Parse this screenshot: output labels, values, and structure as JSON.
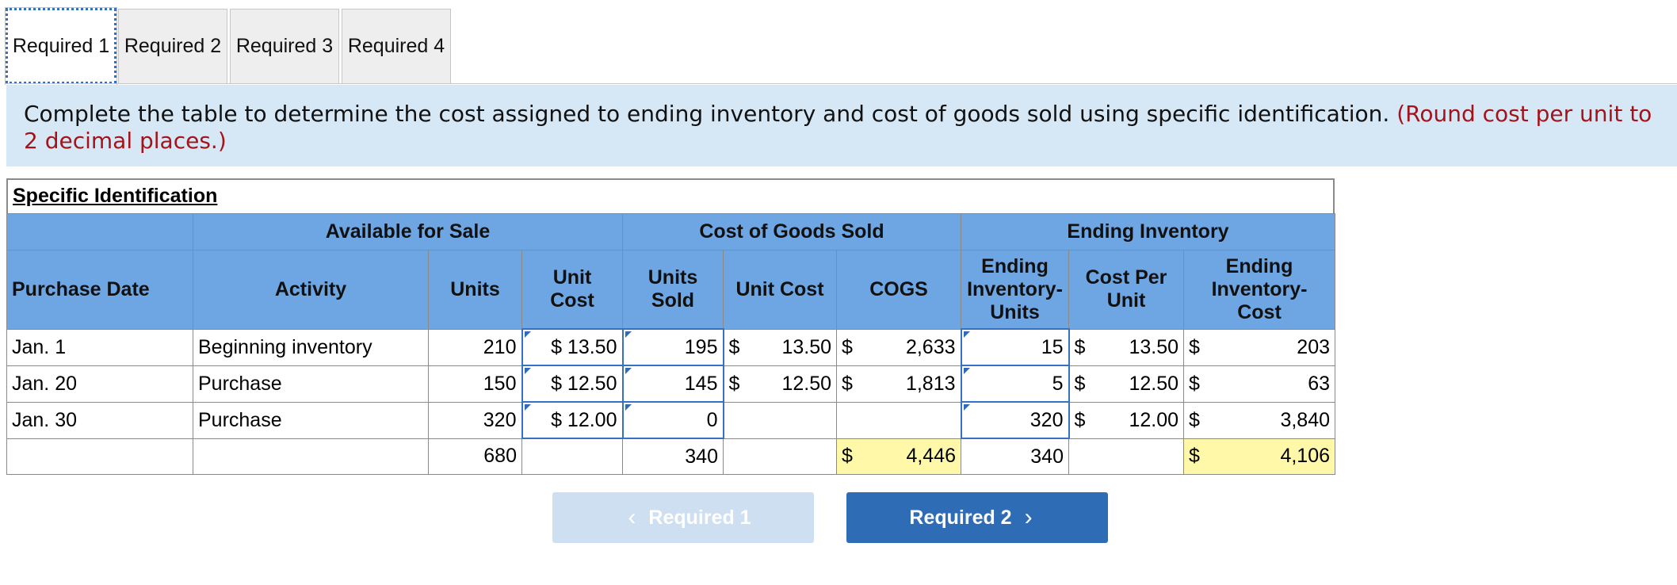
{
  "tabs": [
    {
      "label": "Required 1"
    },
    {
      "label": "Required 2"
    },
    {
      "label": "Required 3"
    },
    {
      "label": "Required 4"
    }
  ],
  "instruction": {
    "text": "Complete the table to determine the cost assigned to ending inventory and cost of goods sold using specific identification.",
    "note": "(Round cost per unit to 2 decimal places.)"
  },
  "table": {
    "title": "Specific Identification",
    "groups": {
      "available": "Available for Sale",
      "cogs": "Cost of Goods Sold",
      "ending": "Ending Inventory"
    },
    "headers": {
      "purchase_date": "Purchase Date",
      "activity": "Activity",
      "units": "Units",
      "unit_cost_l1": "Unit",
      "unit_cost_l2": "Cost",
      "units_sold_l1": "Units",
      "units_sold_l2": "Sold",
      "cogs_unit_cost": "Unit Cost",
      "cogs": "COGS",
      "end_units_l1": "Ending",
      "end_units_l2": "Inventory-",
      "end_units_l3": "Units",
      "cost_per_unit_l1": "Cost Per",
      "cost_per_unit_l2": "Unit",
      "end_cost_l1": "Ending",
      "end_cost_l2": "Inventory-",
      "end_cost_l3": "Cost"
    },
    "rows": [
      {
        "date": "Jan. 1",
        "activity": "Beginning inventory",
        "units": "210",
        "unit_cost": "$ 13.50",
        "units_sold": "195",
        "cogs_unit_cost": "13.50",
        "cogs": "2,633",
        "end_units": "15",
        "cost_per_unit": "13.50",
        "end_cost": "203"
      },
      {
        "date": "Jan. 20",
        "activity": "Purchase",
        "units": "150",
        "unit_cost": "$ 12.50",
        "units_sold": "145",
        "cogs_unit_cost": "12.50",
        "cogs": "1,813",
        "end_units": "5",
        "cost_per_unit": "12.50",
        "end_cost": "63"
      },
      {
        "date": "Jan. 30",
        "activity": "Purchase",
        "units": "320",
        "unit_cost": "$ 12.00",
        "units_sold": "0",
        "cogs_unit_cost": "",
        "cogs": "",
        "end_units": "320",
        "cost_per_unit": "12.00",
        "end_cost": "3,840"
      }
    ],
    "totals": {
      "units": "680",
      "units_sold": "340",
      "cogs": "4,446",
      "end_units": "340",
      "end_cost": "4,106"
    },
    "currency": "$"
  },
  "nav": {
    "prev_label": "Required 1",
    "next_label": "Required 2"
  },
  "colors": {
    "header_blue": "#6ea6e3",
    "instruction_bg": "#d6e8f6",
    "note_red": "#a4131a",
    "total_yellow": "#fff8a8",
    "next_button": "#2e6cb5"
  }
}
